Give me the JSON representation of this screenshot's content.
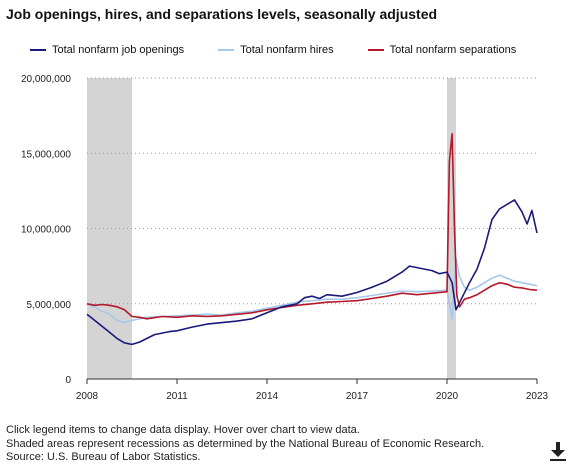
{
  "title": "Job openings, hires, and separations levels, seasonally adjusted",
  "notes": [
    "Click legend items to change data display. Hover over chart to view data.",
    "Shaded areas represent recessions as determined by the National Bureau of Economic Research.",
    "Source: U.S. Bureau of Labor Statistics."
  ],
  "download_icon": "download-arrow-icon",
  "chart_data": {
    "type": "line",
    "title": "Job openings, hires, and separations levels, seasonally adjusted",
    "xlim": [
      2008.0,
      2023.0
    ],
    "ylim": [
      0,
      20000000
    ],
    "x_ticks": [
      2008,
      2011,
      2014,
      2017,
      2020,
      2023
    ],
    "x_tick_labels": [
      "2008",
      "2011",
      "2014",
      "2017",
      "2020",
      "2023"
    ],
    "y_ticks": [
      0,
      5000000,
      10000000,
      15000000,
      20000000
    ],
    "y_tick_labels": [
      "0",
      "5,000,000",
      "10,000,000",
      "15,000,000",
      "20,000,000"
    ],
    "grid": "horizontal dotted",
    "legend_position": "top",
    "recessions": [
      [
        2008.0,
        2009.5
      ],
      [
        2020.0,
        2020.3
      ]
    ],
    "recession_color": "#d4d4d4",
    "series": [
      {
        "name": "Total nonfarm job openings",
        "color": "#1a1a7a",
        "points": [
          [
            2008.0,
            4300000
          ],
          [
            2008.25,
            3900000
          ],
          [
            2008.5,
            3500000
          ],
          [
            2008.75,
            3100000
          ],
          [
            2009.0,
            2700000
          ],
          [
            2009.25,
            2400000
          ],
          [
            2009.5,
            2300000
          ],
          [
            2009.75,
            2450000
          ],
          [
            2010.0,
            2700000
          ],
          [
            2010.25,
            2950000
          ],
          [
            2010.5,
            3050000
          ],
          [
            2010.75,
            3150000
          ],
          [
            2011.0,
            3200000
          ],
          [
            2011.5,
            3450000
          ],
          [
            2012.0,
            3650000
          ],
          [
            2012.5,
            3750000
          ],
          [
            2013.0,
            3850000
          ],
          [
            2013.5,
            4000000
          ],
          [
            2014.0,
            4400000
          ],
          [
            2014.5,
            4800000
          ],
          [
            2015.0,
            5000000
          ],
          [
            2015.25,
            5400000
          ],
          [
            2015.5,
            5500000
          ],
          [
            2015.75,
            5350000
          ],
          [
            2016.0,
            5600000
          ],
          [
            2016.5,
            5500000
          ],
          [
            2017.0,
            5750000
          ],
          [
            2017.5,
            6100000
          ],
          [
            2018.0,
            6500000
          ],
          [
            2018.5,
            7100000
          ],
          [
            2018.75,
            7500000
          ],
          [
            2019.0,
            7400000
          ],
          [
            2019.5,
            7200000
          ],
          [
            2019.75,
            7000000
          ],
          [
            2020.0,
            7100000
          ],
          [
            2020.17,
            6400000
          ],
          [
            2020.3,
            4600000
          ],
          [
            2020.5,
            5400000
          ],
          [
            2020.75,
            6400000
          ],
          [
            2021.0,
            7300000
          ],
          [
            2021.25,
            8700000
          ],
          [
            2021.5,
            10600000
          ],
          [
            2021.75,
            11300000
          ],
          [
            2022.0,
            11600000
          ],
          [
            2022.25,
            11900000
          ],
          [
            2022.5,
            11100000
          ],
          [
            2022.67,
            10300000
          ],
          [
            2022.83,
            11200000
          ],
          [
            2023.0,
            9700000
          ]
        ]
      },
      {
        "name": "Total nonfarm hires",
        "color": "#a6c8ea",
        "points": [
          [
            2008.0,
            5000000
          ],
          [
            2008.25,
            4800000
          ],
          [
            2008.5,
            4500000
          ],
          [
            2008.75,
            4300000
          ],
          [
            2009.0,
            3900000
          ],
          [
            2009.25,
            3750000
          ],
          [
            2009.5,
            3900000
          ],
          [
            2009.75,
            4000000
          ],
          [
            2010.0,
            4100000
          ],
          [
            2010.5,
            4150000
          ],
          [
            2011.0,
            4200000
          ],
          [
            2011.5,
            4250000
          ],
          [
            2012.0,
            4300000
          ],
          [
            2012.5,
            4250000
          ],
          [
            2013.0,
            4400000
          ],
          [
            2013.5,
            4500000
          ],
          [
            2014.0,
            4700000
          ],
          [
            2014.5,
            4900000
          ],
          [
            2015.0,
            5100000
          ],
          [
            2015.5,
            5200000
          ],
          [
            2016.0,
            5300000
          ],
          [
            2016.5,
            5300000
          ],
          [
            2017.0,
            5400000
          ],
          [
            2017.5,
            5550000
          ],
          [
            2018.0,
            5700000
          ],
          [
            2018.5,
            5850000
          ],
          [
            2019.0,
            5800000
          ],
          [
            2019.5,
            5850000
          ],
          [
            2020.0,
            5900000
          ],
          [
            2020.17,
            4000000
          ],
          [
            2020.3,
            8000000
          ],
          [
            2020.42,
            6800000
          ],
          [
            2020.58,
            6100000
          ],
          [
            2020.75,
            5900000
          ],
          [
            2021.0,
            6100000
          ],
          [
            2021.25,
            6400000
          ],
          [
            2021.5,
            6700000
          ],
          [
            2021.75,
            6900000
          ],
          [
            2022.0,
            6700000
          ],
          [
            2022.25,
            6500000
          ],
          [
            2022.5,
            6400000
          ],
          [
            2022.75,
            6300000
          ],
          [
            2023.0,
            6200000
          ]
        ]
      },
      {
        "name": "Total nonfarm separations",
        "color": "#b5172b",
        "points": [
          [
            2008.0,
            5000000
          ],
          [
            2008.25,
            4900000
          ],
          [
            2008.5,
            4950000
          ],
          [
            2008.75,
            4900000
          ],
          [
            2009.0,
            4800000
          ],
          [
            2009.25,
            4600000
          ],
          [
            2009.5,
            4150000
          ],
          [
            2009.75,
            4100000
          ],
          [
            2010.0,
            4000000
          ],
          [
            2010.5,
            4150000
          ],
          [
            2011.0,
            4100000
          ],
          [
            2011.5,
            4200000
          ],
          [
            2012.0,
            4150000
          ],
          [
            2012.5,
            4200000
          ],
          [
            2013.0,
            4300000
          ],
          [
            2013.5,
            4400000
          ],
          [
            2014.0,
            4600000
          ],
          [
            2014.5,
            4750000
          ],
          [
            2015.0,
            4900000
          ],
          [
            2015.5,
            5000000
          ],
          [
            2016.0,
            5100000
          ],
          [
            2016.5,
            5150000
          ],
          [
            2017.0,
            5200000
          ],
          [
            2017.5,
            5350000
          ],
          [
            2018.0,
            5500000
          ],
          [
            2018.5,
            5700000
          ],
          [
            2019.0,
            5600000
          ],
          [
            2019.5,
            5700000
          ],
          [
            2020.0,
            5800000
          ],
          [
            2020.08,
            14500000
          ],
          [
            2020.17,
            16300000
          ],
          [
            2020.25,
            10000000
          ],
          [
            2020.33,
            5500000
          ],
          [
            2020.42,
            4800000
          ],
          [
            2020.58,
            5300000
          ],
          [
            2020.75,
            5400000
          ],
          [
            2021.0,
            5600000
          ],
          [
            2021.25,
            5900000
          ],
          [
            2021.5,
            6200000
          ],
          [
            2021.75,
            6400000
          ],
          [
            2022.0,
            6300000
          ],
          [
            2022.25,
            6100000
          ],
          [
            2022.5,
            6050000
          ],
          [
            2022.75,
            5950000
          ],
          [
            2023.0,
            5900000
          ]
        ]
      }
    ]
  }
}
